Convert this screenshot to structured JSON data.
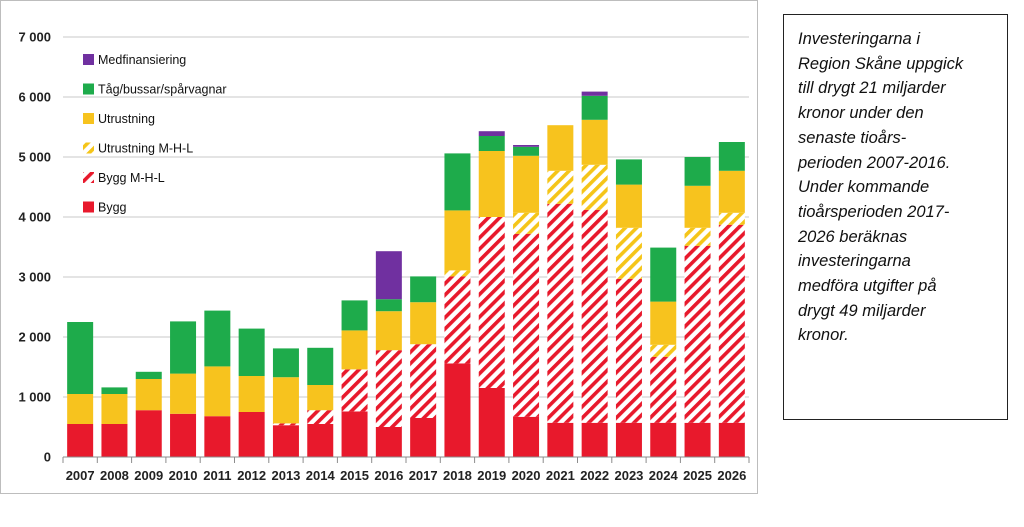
{
  "chart_data": {
    "type": "bar",
    "stacked": true,
    "categories": [
      "2007",
      "2008",
      "2009",
      "2010",
      "2011",
      "2012",
      "2013",
      "2014",
      "2015",
      "2016",
      "2017",
      "2018",
      "2019",
      "2020",
      "2021",
      "2022",
      "2023",
      "2024",
      "2025",
      "2026"
    ],
    "ylim": [
      0,
      7000
    ],
    "yticks": [
      0,
      1000,
      2000,
      3000,
      4000,
      5000,
      6000,
      7000
    ],
    "ytick_labels": [
      "0",
      "1 000",
      "2 000",
      "3 000",
      "4 000",
      "5 000",
      "6 000",
      "7 000"
    ],
    "grid": true,
    "legend_position": "top-left",
    "series": [
      {
        "name": "Bygg",
        "color": "#e8192c",
        "pattern": "solid",
        "values": [
          550,
          550,
          780,
          720,
          680,
          750,
          530,
          550,
          760,
          500,
          650,
          1560,
          1150,
          670,
          570,
          570,
          570,
          570,
          570,
          570
        ]
      },
      {
        "name": "Bygg M-H-L",
        "color": "#e8192c",
        "pattern": "hatch",
        "values": [
          0,
          0,
          0,
          0,
          0,
          0,
          30,
          230,
          700,
          1280,
          1230,
          1450,
          2850,
          3050,
          3650,
          3550,
          2400,
          1100,
          2950,
          3300
        ]
      },
      {
        "name": "Utrustning M-H-L",
        "color": "#f5c518",
        "pattern": "hatch",
        "values": [
          0,
          0,
          0,
          0,
          0,
          0,
          0,
          0,
          0,
          0,
          0,
          100,
          0,
          350,
          550,
          750,
          850,
          200,
          300,
          200
        ]
      },
      {
        "name": "Utrustning",
        "color": "#f7c31e",
        "pattern": "solid",
        "values": [
          500,
          500,
          520,
          670,
          830,
          600,
          770,
          420,
          650,
          650,
          700,
          1000,
          1100,
          950,
          760,
          750,
          720,
          720,
          700,
          700
        ]
      },
      {
        "name": "Tåg/bussar/spårvagnar",
        "color": "#1eab4b",
        "pattern": "solid",
        "values": [
          1200,
          110,
          120,
          870,
          930,
          790,
          480,
          620,
          500,
          200,
          430,
          950,
          250,
          150,
          0,
          400,
          420,
          900,
          480,
          480
        ]
      },
      {
        "name": "Medfinansiering",
        "color": "#7030a0",
        "pattern": "solid",
        "values": [
          0,
          0,
          0,
          0,
          0,
          0,
          0,
          0,
          0,
          800,
          0,
          0,
          80,
          30,
          0,
          70,
          0,
          0,
          0,
          0
        ]
      }
    ]
  },
  "note": {
    "lines": [
      "Investeringarna i",
      "Region Skåne uppgick",
      "till drygt 21 miljarder",
      "kronor under den",
      "senaste tioårs-",
      "perioden 2007-2016.",
      "Under kommande",
      "tioårsperioden 2017-",
      "2026 beräknas",
      "investeringarna",
      "medföra utgifter på",
      "drygt 49 miljarder",
      "kronor."
    ]
  }
}
